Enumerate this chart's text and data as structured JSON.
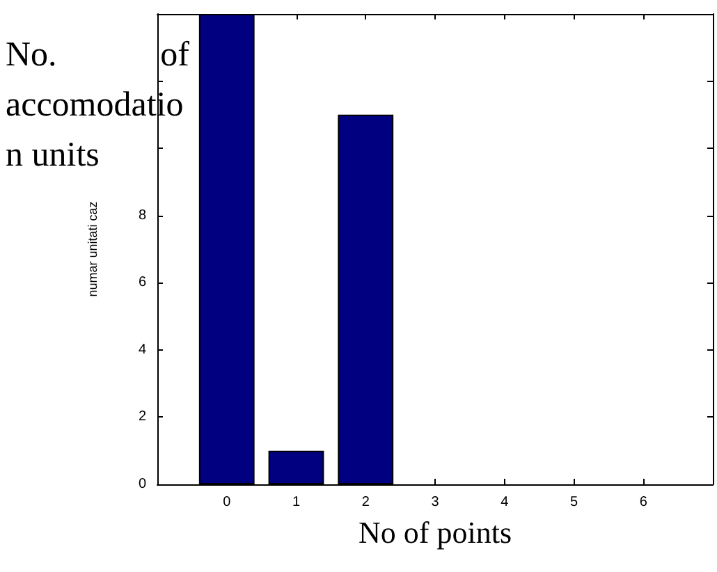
{
  "chart_data": {
    "type": "bar",
    "xlabel": "No of points",
    "ylabel": "numar unitati caz",
    "annotations": [
      "No. of accomodation units"
    ],
    "x": [
      0,
      1,
      2
    ],
    "values": [
      14,
      1,
      11
    ],
    "color": "#000080",
    "xlim": [
      -1,
      7
    ],
    "xticks": [
      0,
      1,
      2,
      3,
      4,
      5,
      6
    ],
    "ylim": [
      0,
      14
    ],
    "yticks": [
      0,
      2,
      4,
      6,
      8,
      {
        "value": 10,
        "label": null
      },
      {
        "value": 12,
        "label": null
      },
      {
        "value": 14,
        "label": null
      }
    ],
    "data_labels": false
  }
}
